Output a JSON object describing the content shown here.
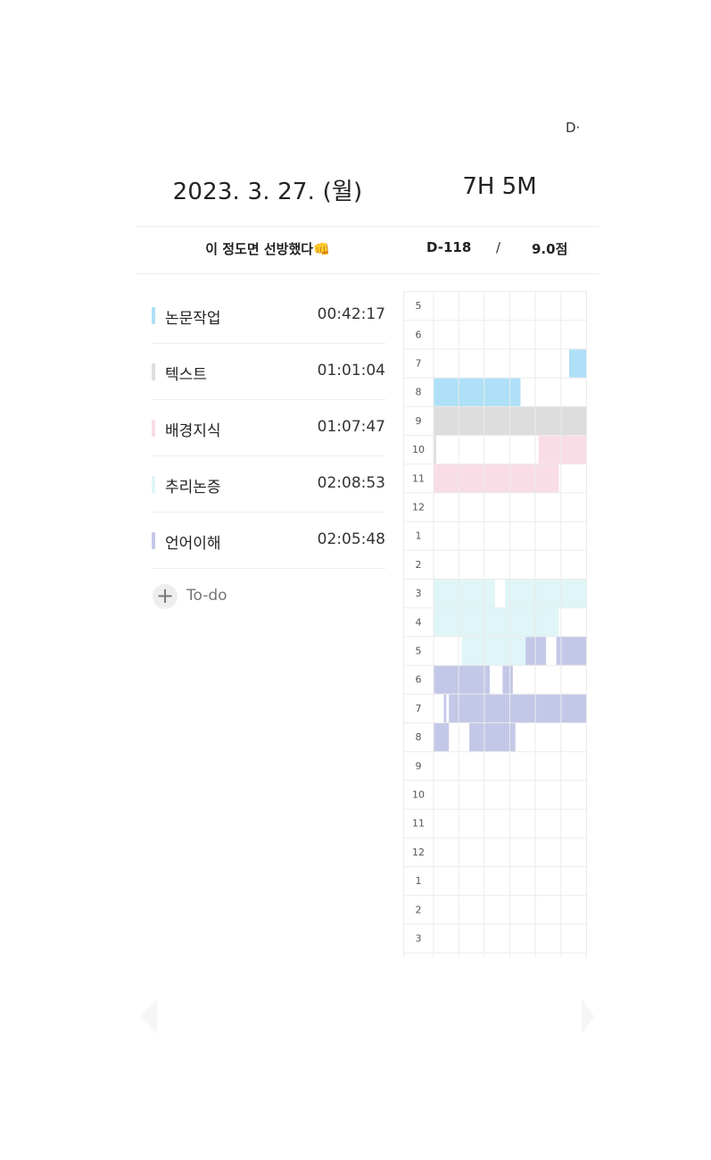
{
  "corner_glyph": "D·",
  "header": {
    "date": "2023. 3. 27. (월)",
    "total": "7H 5M"
  },
  "status": {
    "motto": "이 정도면 선방했다👊",
    "dday": "D-118",
    "separator": "/",
    "score": "9.0점"
  },
  "subjects": [
    {
      "name": "논문작업",
      "time": "00:42:17",
      "color": "#aee0f7"
    },
    {
      "name": "텍스트",
      "time": "01:01:04",
      "color": "#dddddd"
    },
    {
      "name": "배경지식",
      "time": "01:07:47",
      "color": "#f9dde6"
    },
    {
      "name": "추리논증",
      "time": "02:08:53",
      "color": "#dff5f7"
    },
    {
      "name": "언어이해",
      "time": "02:05:48",
      "color": "#c4c8e8"
    }
  ],
  "todo": {
    "label": "To-do",
    "plus": "+"
  },
  "timetable": {
    "hours": [
      "5",
      "6",
      "7",
      "8",
      "9",
      "10",
      "11",
      "12",
      "1",
      "2",
      "3",
      "4",
      "5",
      "6",
      "7",
      "8",
      "9",
      "10",
      "11",
      "12",
      "1",
      "2",
      "3"
    ],
    "columns_per_hour": 6,
    "blocks": [
      {
        "subject": 0,
        "row": 2,
        "start": 5.3,
        "end": 6
      },
      {
        "subject": 0,
        "row": 3,
        "start": 0,
        "end": 3.4
      },
      {
        "subject": 1,
        "row": 4,
        "start": 0,
        "end": 6
      },
      {
        "subject": 1,
        "row": 5,
        "start": 0,
        "end": 0.1
      },
      {
        "subject": 2,
        "row": 5,
        "start": 4.1,
        "end": 6
      },
      {
        "subject": 2,
        "row": 6,
        "start": 0,
        "end": 4.9
      },
      {
        "subject": 3,
        "row": 10,
        "start": 0,
        "end": 2.4
      },
      {
        "subject": 3,
        "row": 10,
        "start": 2.8,
        "end": 6
      },
      {
        "subject": 3,
        "row": 11,
        "start": 0,
        "end": 4.9
      },
      {
        "subject": 3,
        "row": 12,
        "start": 1.1,
        "end": 3.6
      },
      {
        "subject": 4,
        "row": 12,
        "start": 3.6,
        "end": 4.4
      },
      {
        "subject": 4,
        "row": 12,
        "start": 4.8,
        "end": 6
      },
      {
        "subject": 4,
        "row": 13,
        "start": 0,
        "end": 2.2
      },
      {
        "subject": 4,
        "row": 13,
        "start": 2.7,
        "end": 3.1
      },
      {
        "subject": 4,
        "row": 14,
        "start": 0.4,
        "end": 0.5
      },
      {
        "subject": 4,
        "row": 14,
        "start": 0.6,
        "end": 6
      },
      {
        "subject": 4,
        "row": 15,
        "start": 0,
        "end": 0.6
      },
      {
        "subject": 4,
        "row": 15,
        "start": 1.4,
        "end": 3.2
      }
    ]
  }
}
